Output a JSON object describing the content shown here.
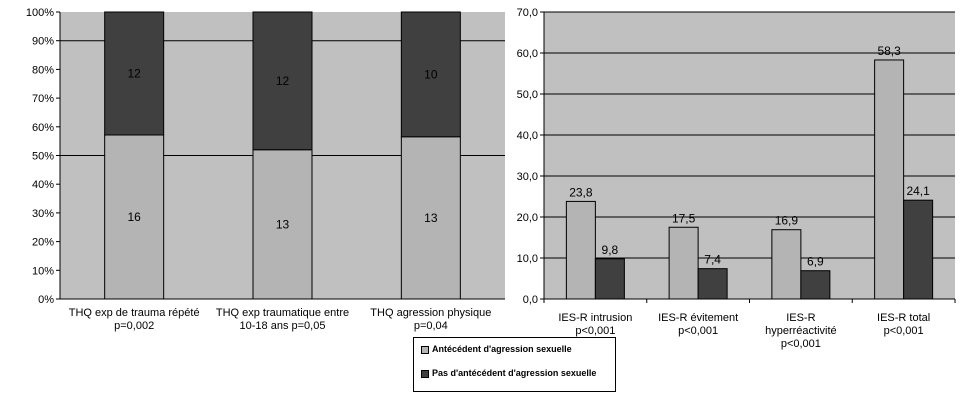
{
  "colors": {
    "plot_bg": "#c0c0c0",
    "series_light": "#b4b4b4",
    "series_dark": "#404040",
    "gridline": "#000000",
    "axis": "#000000"
  },
  "legend": {
    "items": [
      {
        "label": "Antécédent d'agression sexuelle",
        "color": "#b4b4b4"
      },
      {
        "label": "Pas d'antécédent d'agression sexuelle",
        "color": "#404040"
      }
    ]
  },
  "chart_data": [
    {
      "type": "bar",
      "stacked": "percent",
      "categories": [
        [
          "THQ exp de trauma répété",
          "p=0,002"
        ],
        [
          "THQ exp traumatique entre",
          "10-18 ans p=0,05"
        ],
        [
          "THQ  agression physique",
          "p=0,04"
        ]
      ],
      "series": [
        {
          "name": "Antécédent d'agression sexuelle",
          "values": [
            16,
            13,
            13
          ]
        },
        {
          "name": "Pas d'antécédent d'agression sexuelle",
          "values": [
            12,
            12,
            10
          ]
        }
      ],
      "yticks": [
        "0%",
        "10%",
        "20%",
        "30%",
        "40%",
        "50%",
        "60%",
        "70%",
        "80%",
        "90%",
        "100%"
      ],
      "ylim": [
        0,
        100
      ],
      "grid": "major y at 50% and 90%",
      "legend": "bottom-center"
    },
    {
      "type": "bar",
      "categories": [
        [
          "IES-R intrusion",
          "p<0,001"
        ],
        [
          "IES-R évitement",
          "p<0,001"
        ],
        [
          "IES-R",
          "hyperréactivité",
          "p<0,001"
        ],
        [
          "IES-R total",
          "p<0,001"
        ]
      ],
      "series": [
        {
          "name": "Antécédent d'agression sexuelle",
          "values": [
            23.8,
            17.5,
            16.9,
            58.3
          ],
          "labels": [
            "23,8",
            "17,5",
            "16,9",
            "58,3"
          ]
        },
        {
          "name": "Pas d'antécédent d'agression sexuelle",
          "values": [
            9.8,
            7.4,
            6.9,
            24.1
          ],
          "labels": [
            "9,8",
            "7,4",
            "6,9",
            "24,1"
          ]
        }
      ],
      "yticks": [
        "0,0",
        "10,0",
        "20,0",
        "30,0",
        "40,0",
        "50,0",
        "60,0",
        "70,0"
      ],
      "ylim": [
        0,
        70
      ],
      "grid": "major y every 10",
      "legend": "bottom-center"
    }
  ]
}
